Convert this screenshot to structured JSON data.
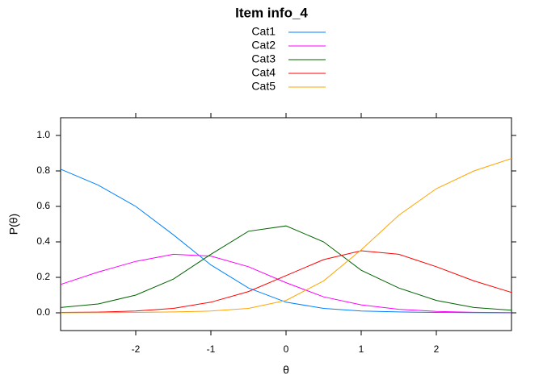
{
  "chart_data": {
    "type": "line",
    "title": "Item info_4",
    "x_label": "θ",
    "y_label": "P(θ)",
    "x": [
      -3,
      -2.5,
      -2,
      -1.5,
      -1,
      -0.5,
      0,
      0.5,
      1,
      1.5,
      2,
      2.5,
      3
    ],
    "series": [
      {
        "name": "Cat1",
        "color": "#0080ff",
        "values": [
          0.81,
          0.72,
          0.6,
          0.44,
          0.27,
          0.14,
          0.06,
          0.025,
          0.01,
          0.005,
          0.002,
          0.001,
          0.0
        ]
      },
      {
        "name": "Cat2",
        "color": "#ff00ff",
        "values": [
          0.16,
          0.23,
          0.29,
          0.33,
          0.32,
          0.26,
          0.17,
          0.09,
          0.045,
          0.02,
          0.008,
          0.003,
          0.001
        ]
      },
      {
        "name": "Cat3",
        "color": "#006400",
        "values": [
          0.03,
          0.05,
          0.1,
          0.19,
          0.33,
          0.46,
          0.49,
          0.4,
          0.24,
          0.14,
          0.07,
          0.03,
          0.015
        ]
      },
      {
        "name": "Cat4",
        "color": "#ff0000",
        "values": [
          0.002,
          0.004,
          0.01,
          0.025,
          0.06,
          0.12,
          0.21,
          0.3,
          0.35,
          0.33,
          0.26,
          0.18,
          0.115
        ]
      },
      {
        "name": "Cat5",
        "color": "#ffa500",
        "values": [
          0.0,
          0.001,
          0.002,
          0.005,
          0.01,
          0.025,
          0.07,
          0.18,
          0.355,
          0.55,
          0.7,
          0.8,
          0.87
        ]
      }
    ],
    "xlim": [
      -3,
      3
    ],
    "xticks": [
      -2,
      -1,
      0,
      1,
      2
    ],
    "ylim": [
      -0.1,
      1.1
    ],
    "yticks": [
      {
        "value": 0,
        "label": "0.0"
      },
      0.2,
      0.4,
      0.6,
      0.8,
      {
        "value": 1,
        "label": "1.0"
      }
    ],
    "grid": false,
    "legend": "top"
  }
}
